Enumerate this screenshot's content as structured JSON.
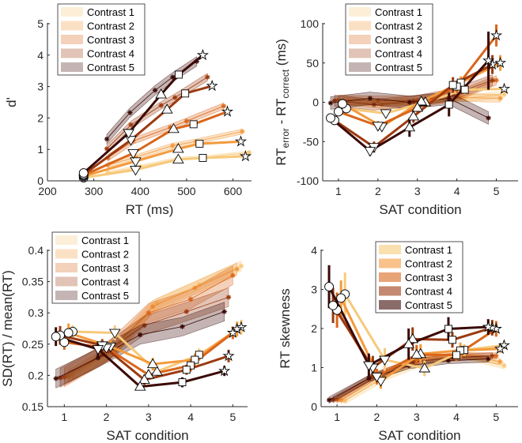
{
  "contrast_colors": [
    "#f7c97a",
    "#f39a3c",
    "#d9661c",
    "#9c3a10",
    "#3b0a06"
  ],
  "marker_shapes": [
    "circle",
    "triangle-down",
    "triangle-up",
    "square",
    "star"
  ],
  "chart_data": [
    {
      "type": "line",
      "panel": "top-left",
      "xlabel": "RT (ms)",
      "ylabel": "d'",
      "xlim": [
        200,
        640
      ],
      "ylim": [
        0,
        5
      ],
      "xticks": [
        200,
        300,
        400,
        500,
        600
      ],
      "yticks": [
        0,
        1,
        2,
        3,
        4,
        5
      ],
      "legend": "top-left",
      "grid": false,
      "series": [
        {
          "name": "Contrast 1",
          "x": [
            278,
            390,
            482,
            535,
            627
          ],
          "y": [
            0.1,
            0.35,
            0.68,
            0.73,
            0.78
          ],
          "model_x": [
            330,
            400,
            480,
            540,
            635
          ],
          "model_y": [
            0.25,
            0.45,
            0.7,
            0.75,
            0.9
          ],
          "model_ci": 0.05
        },
        {
          "name": "Contrast 2",
          "x": [
            278,
            390,
            482,
            528,
            617
          ],
          "y": [
            0.15,
            0.62,
            1.02,
            1.18,
            1.25
          ],
          "model_x": [
            330,
            390,
            470,
            520,
            620
          ],
          "model_y": [
            0.5,
            0.75,
            1.12,
            1.25,
            1.57
          ],
          "model_ci": 0.08
        },
        {
          "name": "Contrast 3",
          "x": [
            278,
            385,
            472,
            515,
            588
          ],
          "y": [
            0.18,
            0.88,
            1.65,
            1.8,
            2.2
          ],
          "model_x": [
            330,
            385,
            465,
            500,
            580
          ],
          "model_y": [
            0.73,
            1.27,
            1.7,
            1.9,
            2.38
          ],
          "model_ci": 0.1
        },
        {
          "name": "Contrast 4",
          "x": [
            278,
            380,
            458,
            497,
            555
          ],
          "y": [
            0.2,
            1.3,
            2.27,
            2.78,
            3.02
          ],
          "model_x": [
            328,
            380,
            445,
            475,
            545
          ],
          "model_y": [
            1.02,
            1.78,
            2.4,
            2.65,
            3.3
          ],
          "model_ci": 0.12
        },
        {
          "name": "Contrast 5",
          "x": [
            278,
            375,
            445,
            483,
            535
          ],
          "y": [
            0.25,
            1.52,
            2.75,
            3.38,
            4.0
          ],
          "model_x": [
            328,
            378,
            432,
            470,
            522
          ],
          "model_y": [
            1.33,
            2.17,
            2.88,
            3.3,
            3.8
          ],
          "model_ci": 0.15
        }
      ]
    },
    {
      "type": "line",
      "panel": "top-right",
      "xlabel": "SAT condition",
      "ylabel": {
        "base": "RT",
        "sub1": "error",
        "mid": " - RT",
        "sub2": "correct",
        "unit": " (ms)"
      },
      "xlim": [
        0.6,
        5.55
      ],
      "ylim": [
        -100,
        100
      ],
      "xticks": [
        1,
        2,
        3,
        4,
        5
      ],
      "yticks": [
        -100,
        -50,
        0,
        50,
        100
      ],
      "legend": "top",
      "grid": false,
      "series": [
        {
          "name": "Contrast 1",
          "x": [
            1,
            2,
            3,
            4,
            5
          ],
          "y": [
            -8,
            -14,
            0,
            16,
            17
          ],
          "err": [
            3,
            3,
            4,
            6,
            5
          ],
          "model_y": [
            0,
            0,
            2,
            5,
            10
          ],
          "model_ci": 4
        },
        {
          "name": "Contrast 2",
          "x": [
            1,
            2,
            3,
            4,
            5
          ],
          "y": [
            -2,
            -31,
            1,
            25,
            50
          ],
          "err": [
            4,
            5,
            5,
            8,
            10
          ],
          "model_y": [
            2,
            -3,
            0,
            6,
            5
          ],
          "model_ci": 5
        },
        {
          "name": "Contrast 3",
          "x": [
            1,
            2,
            3,
            4,
            5
          ],
          "y": [
            -12,
            -30,
            -7,
            20,
            85
          ],
          "err": [
            4,
            6,
            6,
            8,
            14
          ],
          "model_y": [
            3,
            2,
            2,
            8,
            28
          ],
          "model_ci": 6
        },
        {
          "name": "Contrast 4",
          "x": [
            1,
            2,
            3,
            4,
            5
          ],
          "y": [
            -23,
            -57,
            -18,
            22,
            48
          ],
          "err": [
            4,
            7,
            8,
            10,
            12
          ],
          "model_y": [
            2,
            -3,
            1,
            10,
            28
          ],
          "model_ci": 7
        },
        {
          "name": "Contrast 5",
          "x": [
            1,
            2,
            3,
            4,
            5
          ],
          "y": [
            -20,
            -62,
            -32,
            -3,
            53
          ],
          "err": [
            5,
            6,
            12,
            15,
            37
          ],
          "model_y": [
            -1,
            5,
            0,
            5,
            -20
          ],
          "model_ci": 8
        }
      ]
    },
    {
      "type": "line",
      "panel": "bottom-left",
      "xlabel": "SAT condition",
      "ylabel": "SD(RT) / mean(RT)",
      "xlim": [
        0.6,
        5.35
      ],
      "ylim": [
        0.15,
        0.4
      ],
      "xticks": [
        1,
        2,
        3,
        4,
        5
      ],
      "yticks": [
        0.15,
        0.2,
        0.25,
        0.3,
        0.35,
        0.4
      ],
      "legend": "top-left",
      "grid": false,
      "series": [
        {
          "name": "Contrast 1",
          "x": [
            1,
            2,
            3,
            4,
            5
          ],
          "y": [
            0.27,
            0.268,
            0.206,
            0.233,
            0.277
          ],
          "err": [
            0.01,
            0.012,
            0.01,
            0.01,
            0.012
          ],
          "model_y": [
            0.2,
            0.24,
            0.315,
            0.345,
            0.375
          ],
          "model_ci": 0.008
        },
        {
          "name": "Contrast 2",
          "x": [
            1,
            2,
            3,
            4,
            5
          ],
          "y": [
            0.268,
            0.246,
            0.218,
            0.225,
            0.274
          ],
          "err": [
            0.015,
            0.01,
            0.01,
            0.01,
            0.012
          ],
          "model_y": [
            0.198,
            0.238,
            0.31,
            0.34,
            0.37
          ],
          "model_ci": 0.01
        },
        {
          "name": "Contrast 3",
          "x": [
            1,
            2,
            3,
            4,
            5
          ],
          "y": [
            0.253,
            0.244,
            0.201,
            0.216,
            0.268
          ],
          "err": [
            0.012,
            0.01,
            0.008,
            0.01,
            0.01
          ],
          "model_y": [
            0.197,
            0.236,
            0.3,
            0.322,
            0.36
          ],
          "model_ci": 0.015
        },
        {
          "name": "Contrast 4",
          "x": [
            1,
            2,
            3,
            4,
            5
          ],
          "y": [
            0.264,
            0.248,
            0.193,
            0.209,
            0.231
          ],
          "err": [
            0.015,
            0.01,
            0.008,
            0.008,
            0.01
          ],
          "model_y": [
            0.196,
            0.233,
            0.28,
            0.302,
            0.325
          ],
          "model_ci": 0.015
        },
        {
          "name": "Contrast 5",
          "x": [
            1,
            2,
            3,
            4,
            5
          ],
          "y": [
            0.262,
            0.242,
            0.182,
            0.189,
            0.207
          ],
          "err": [
            0.015,
            0.012,
            0.006,
            0.008,
            0.008
          ],
          "model_y": [
            0.195,
            0.228,
            0.265,
            0.278,
            0.302
          ],
          "model_ci": 0.015
        }
      ]
    },
    {
      "type": "line",
      "panel": "bottom-right",
      "xlabel": "SAT condition",
      "ylabel": "RT skewness",
      "xlim": [
        0.6,
        5.55
      ],
      "ylim": [
        0,
        4
      ],
      "xticks": [
        1,
        2,
        3,
        4,
        5
      ],
      "yticks": [
        0,
        1,
        2,
        3,
        4
      ],
      "legend": "top-right",
      "grid": false,
      "series": [
        {
          "name": "Contrast 1",
          "x": [
            1,
            2,
            3,
            4,
            5
          ],
          "y": [
            2.88,
            1.2,
            0.98,
            1.45,
            1.57
          ],
          "err": [
            0.55,
            0.3,
            0.2,
            0.15,
            0.1
          ],
          "model_y": [
            0.15,
            0.75,
            1.15,
            1.3,
            1.05
          ],
          "model_ci": 0.08
        },
        {
          "name": "Contrast 2",
          "x": [
            1,
            2,
            3,
            4,
            5
          ],
          "y": [
            2.78,
            0.66,
            1.35,
            1.44,
            1.48
          ],
          "err": [
            0.45,
            0.2,
            0.25,
            0.2,
            0.1
          ],
          "model_y": [
            0.17,
            0.78,
            1.25,
            1.35,
            1.15
          ],
          "model_ci": 0.08
        },
        {
          "name": "Contrast 3",
          "x": [
            1,
            2,
            3,
            4,
            5
          ],
          "y": [
            2.47,
            0.77,
            1.33,
            1.32,
            1.99
          ],
          "err": [
            0.45,
            0.2,
            0.25,
            0.15,
            0.2
          ],
          "model_y": [
            0.18,
            0.8,
            1.2,
            1.3,
            1.3
          ],
          "model_ci": 0.08
        },
        {
          "name": "Contrast 4",
          "x": [
            1,
            2,
            3,
            4,
            5
          ],
          "y": [
            2.59,
            1.0,
            1.73,
            1.71,
            2.02
          ],
          "err": [
            0.45,
            0.3,
            0.3,
            0.2,
            0.2
          ],
          "model_y": [
            0.18,
            0.78,
            1.15,
            1.25,
            1.3
          ],
          "model_ci": 0.08
        },
        {
          "name": "Contrast 5",
          "x": [
            1,
            2,
            3,
            4,
            5
          ],
          "y": [
            3.07,
            1.06,
            1.6,
            1.99,
            2.04
          ],
          "err": [
            0.55,
            0.3,
            0.4,
            0.3,
            0.2
          ],
          "model_y": [
            0.17,
            0.72,
            1.05,
            1.18,
            1.22
          ],
          "model_ci": 0.08
        }
      ]
    }
  ]
}
